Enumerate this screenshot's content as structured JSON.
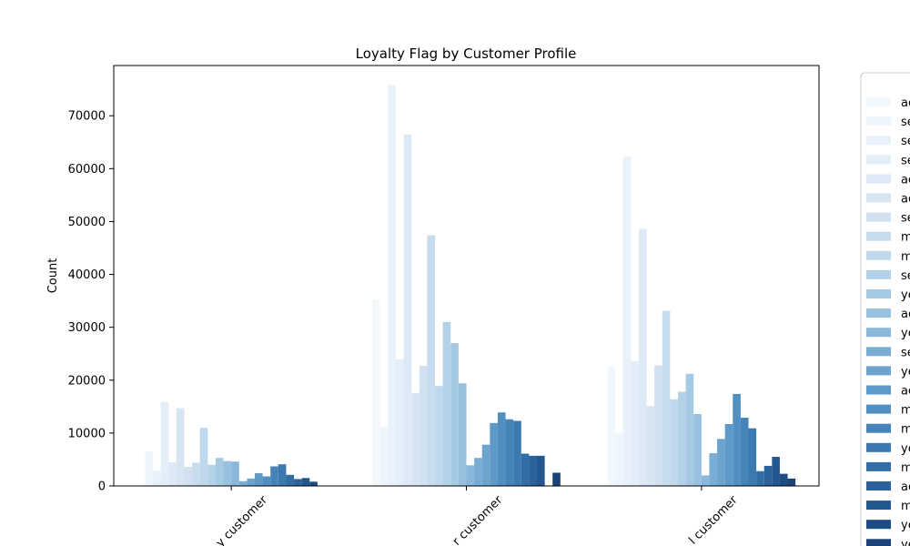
{
  "chart_data": {
    "type": "bar",
    "title": "Loyalty Flag by Customer Profile",
    "xlabel": "",
    "ylabel": "Count",
    "ylim": [
      0,
      79500
    ],
    "yticks": [
      0,
      10000,
      20000,
      30000,
      40000,
      50000,
      60000,
      70000
    ],
    "grid": false,
    "legend_position": "right (clipped)",
    "categories": [
      "New customer",
      "Regular customer",
      "Loyal customer"
    ],
    "category_labels_visible": [
      "y customer",
      "r customer",
      "l customer"
    ],
    "series": [
      {
        "name": "ac",
        "color": "#f3f8fd",
        "values": [
          0,
          35300,
          22800
        ]
      },
      {
        "name": "se",
        "color": "#eef5fc",
        "values": [
          6500,
          11100,
          10100
        ]
      },
      {
        "name": "se",
        "color": "#e9f1fa",
        "values": [
          2900,
          75800,
          62200
        ]
      },
      {
        "name": "se",
        "color": "#e3eef8",
        "values": [
          15900,
          23900,
          23600
        ]
      },
      {
        "name": "ac",
        "color": "#dde9f6",
        "values": [
          4500,
          66500,
          48600
        ]
      },
      {
        "name": "ac",
        "color": "#d7e5f3",
        "values": [
          14700,
          17600,
          15100
        ]
      },
      {
        "name": "se",
        "color": "#d1e1f1",
        "values": [
          3600,
          22700,
          22800
        ]
      },
      {
        "name": "m",
        "color": "#c8dcef",
        "values": [
          4400,
          47400,
          33100
        ]
      },
      {
        "name": "m",
        "color": "#bfd8ec",
        "values": [
          11000,
          18900,
          16400
        ]
      },
      {
        "name": "se",
        "color": "#b3d2e8",
        "values": [
          4000,
          31000,
          17800
        ]
      },
      {
        "name": "ye",
        "color": "#a5cae4",
        "values": [
          5300,
          27000,
          21200
        ]
      },
      {
        "name": "ac",
        "color": "#97c1df",
        "values": [
          4700,
          19400,
          13600
        ]
      },
      {
        "name": "ye",
        "color": "#89b8da",
        "values": [
          4600,
          3900,
          2000
        ]
      },
      {
        "name": "se",
        "color": "#7aadd4",
        "values": [
          900,
          5300,
          6200
        ]
      },
      {
        "name": "ye",
        "color": "#6ca4ce",
        "values": [
          1400,
          7800,
          8900
        ]
      },
      {
        "name": "ac",
        "color": "#5e99c8",
        "values": [
          2400,
          11900,
          11700
        ]
      },
      {
        "name": "m",
        "color": "#518fc1",
        "values": [
          1800,
          13900,
          17400
        ]
      },
      {
        "name": "m",
        "color": "#4584b9",
        "values": [
          3700,
          12600,
          12900
        ]
      },
      {
        "name": "ye",
        "color": "#3b79b0",
        "values": [
          4100,
          12300,
          10900
        ]
      },
      {
        "name": "m",
        "color": "#336da6",
        "values": [
          2100,
          6100,
          2800
        ]
      },
      {
        "name": "ac",
        "color": "#2b629b",
        "values": [
          1300,
          5700,
          3800
        ]
      },
      {
        "name": "m",
        "color": "#235790",
        "values": [
          1500,
          5700,
          5500
        ]
      },
      {
        "name": "ye",
        "color": "#1c4c84",
        "values": [
          800,
          0,
          2300
        ]
      },
      {
        "name": "ye",
        "color": "#1a4478",
        "values": [
          0,
          2500,
          1400
        ]
      }
    ]
  }
}
